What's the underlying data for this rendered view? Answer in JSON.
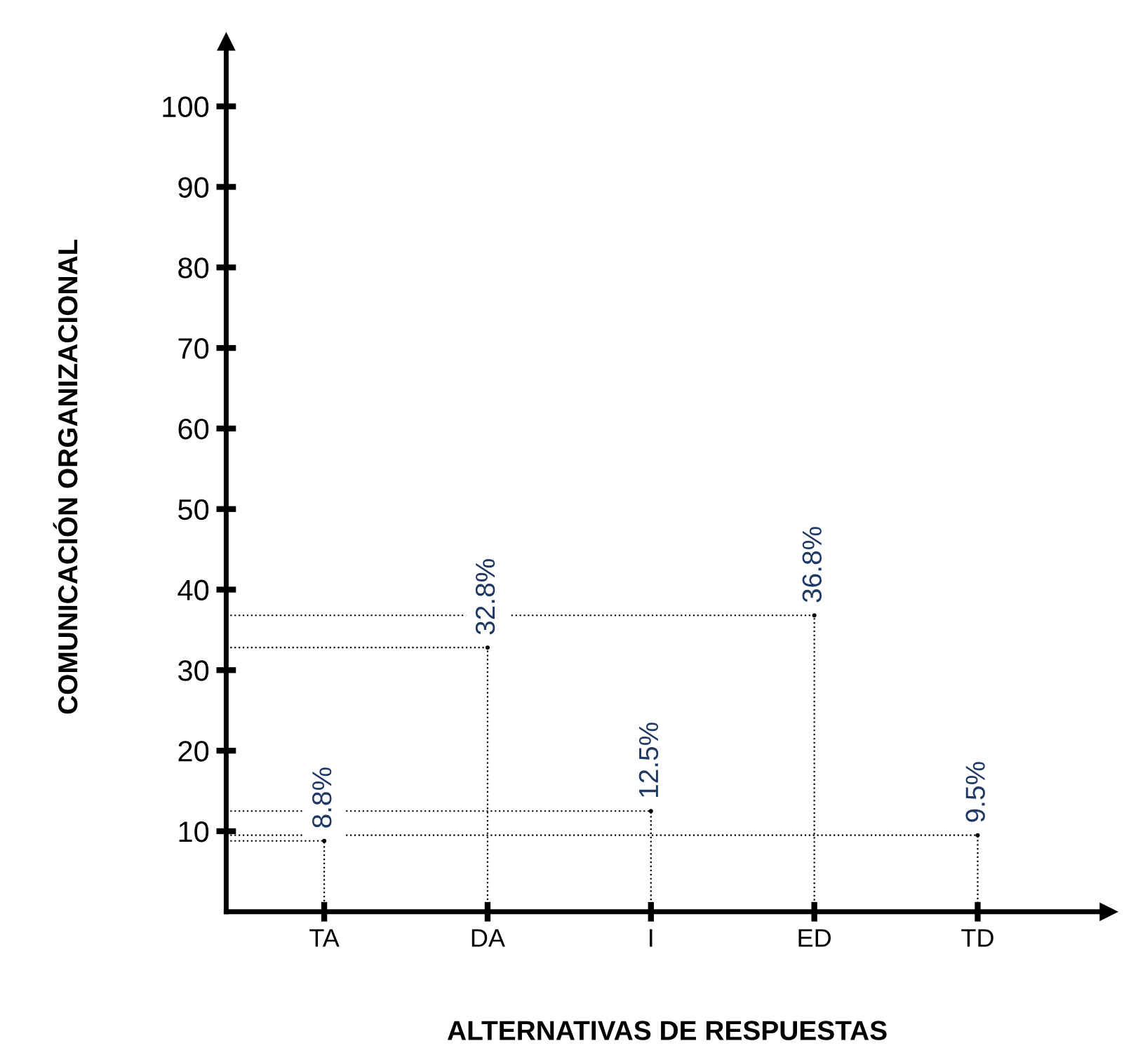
{
  "chart_data": {
    "type": "lollipop",
    "xlabel": "ALTERNATIVAS DE RESPUESTAS",
    "ylabel": "COMUNICACIÓN ORGANIZACIONAL",
    "categories": [
      "TA",
      "DA",
      "I",
      "ED",
      "TD"
    ],
    "values": [
      8.8,
      32.8,
      12.5,
      36.8,
      9.5
    ],
    "value_labels": [
      "8.8%",
      "32.8%",
      "12.5%",
      "36.8%",
      "9.5%"
    ],
    "color": "#000000",
    "line_style": "dotted",
    "ylim": [
      0,
      108
    ],
    "yticks": [
      10,
      20,
      30,
      40,
      50,
      60,
      70,
      80,
      90,
      100
    ],
    "grid": false,
    "legend": false
  }
}
